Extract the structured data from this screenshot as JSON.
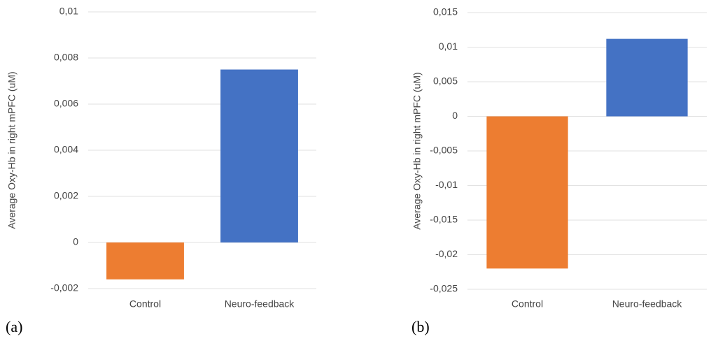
{
  "chart_data": [
    {
      "type": "bar",
      "label": "(a)",
      "y_label": "Average Oxy-Hb in right mPFC (uM)",
      "categories": [
        "Control",
        "Neuro-feedback"
      ],
      "values": [
        -0.0016,
        0.0075
      ],
      "colors": [
        "#ed7d31",
        "#4472c4"
      ],
      "ylim": [
        -0.002,
        0.01
      ],
      "yticks": [
        {
          "value": -0.002,
          "label": "-0,002"
        },
        0,
        {
          "value": 0.002,
          "label": "0,002"
        },
        {
          "value": 0.004,
          "label": "0,004"
        },
        {
          "value": 0.006,
          "label": "0,006"
        },
        {
          "value": 0.008,
          "label": "0,008"
        },
        {
          "value": 0.01,
          "label": "0,01"
        }
      ],
      "grid": true
    },
    {
      "type": "bar",
      "label": "(b)",
      "y_label": "Average Oxy-Hb in right mPFC (uM)",
      "categories": [
        "Control",
        "Neuro-feedback"
      ],
      "values": [
        -0.022,
        0.0112
      ],
      "colors": [
        "#ed7d31",
        "#4472c4"
      ],
      "ylim": [
        -0.025,
        0.015
      ],
      "yticks": [
        {
          "value": -0.025,
          "label": "-0,025"
        },
        {
          "value": -0.02,
          "label": "-0,02"
        },
        {
          "value": -0.015,
          "label": "-0,015"
        },
        {
          "value": -0.01,
          "label": "-0,01"
        },
        {
          "value": -0.005,
          "label": "-0,005"
        },
        0,
        {
          "value": 0.005,
          "label": "0,005"
        },
        {
          "value": 0.01,
          "label": "0,01"
        },
        {
          "value": 0.015,
          "label": "0,015"
        }
      ],
      "grid": true
    }
  ]
}
